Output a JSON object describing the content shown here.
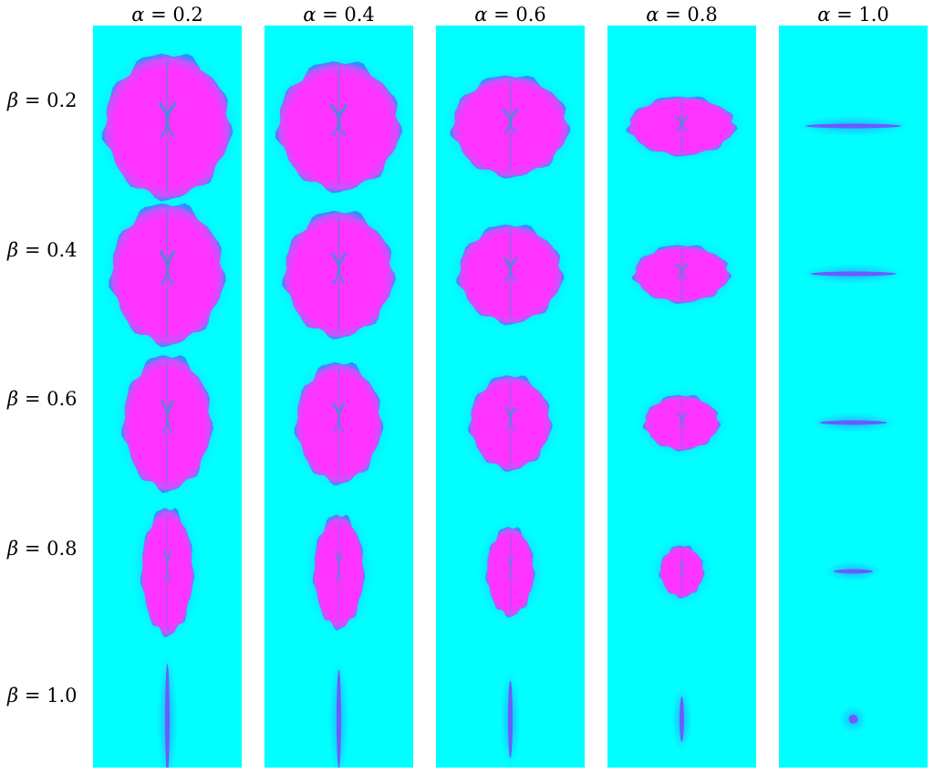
{
  "columns": [
    {
      "symbol": "α",
      "text": " = 0.2",
      "alpha": 0.2
    },
    {
      "symbol": "α",
      "text": " = 0.4",
      "alpha": 0.4
    },
    {
      "symbol": "α",
      "text": " = 0.6",
      "alpha": 0.6
    },
    {
      "symbol": "α",
      "text": " = 0.8",
      "alpha": 0.8
    },
    {
      "symbol": "α",
      "text": " = 1.0",
      "alpha": 1.0
    }
  ],
  "rows": [
    {
      "symbol": "β",
      "text": " = 0.2",
      "beta": 0.2
    },
    {
      "symbol": "β",
      "text": " = 0.4",
      "beta": 0.4
    },
    {
      "symbol": "β",
      "text": " = 0.6",
      "beta": 0.6
    },
    {
      "symbol": "β",
      "text": " = 0.8",
      "beta": 0.8
    },
    {
      "symbol": "β",
      "text": " = 1.0",
      "beta": 1.0
    }
  ],
  "colors": {
    "background": "#00ffff",
    "tissue": "#ff33ff",
    "edge": "#3a7bff",
    "ventricle": "#4a8ad8"
  }
}
